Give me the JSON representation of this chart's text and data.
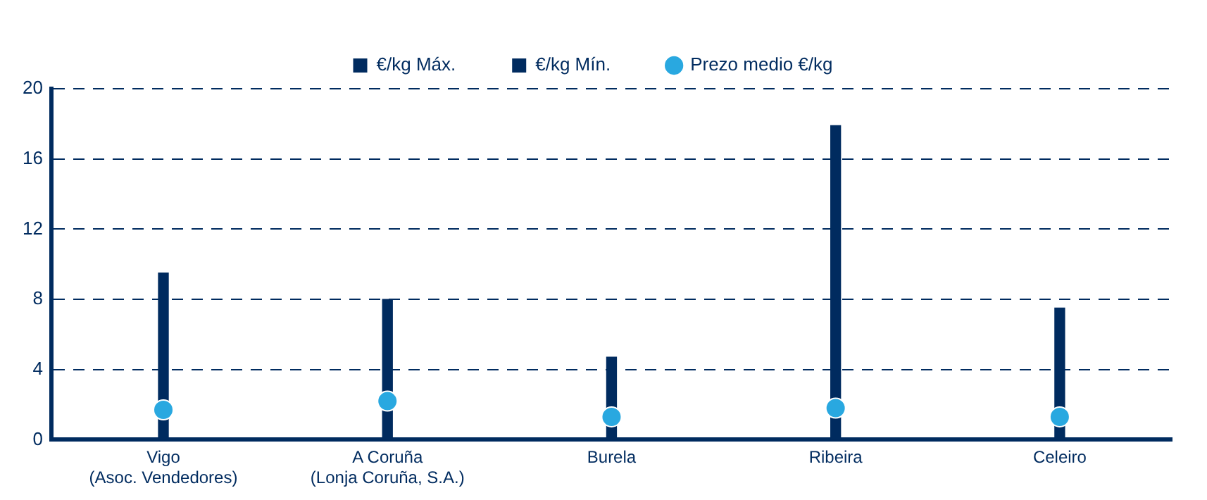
{
  "chart_data": {
    "type": "bar",
    "categories": [
      "Vigo\n(Asoc. Vendedores)",
      "A Coruña\n(Lonja Coruña, S.A.)",
      "Burela",
      "Ribeira",
      "Celeiro"
    ],
    "series": [
      {
        "name": "€/kg Máx.",
        "color": "#002b5f",
        "values": [
          9.5,
          8.0,
          4.7,
          17.9,
          7.5
        ]
      },
      {
        "name": "€/kg Mín.",
        "color": "#002b5f",
        "values": [
          0,
          0,
          0,
          0,
          0
        ]
      },
      {
        "name": "Prezo medio €/kg",
        "type": "scatter",
        "color": "#29a8e0",
        "marker": "circle",
        "values": [
          1.7,
          2.2,
          1.3,
          1.8,
          1.3
        ]
      }
    ],
    "ylim": [
      0,
      20
    ],
    "yticks": [
      0,
      4,
      8,
      12,
      16,
      20
    ],
    "grid": "y",
    "legend": "top"
  }
}
